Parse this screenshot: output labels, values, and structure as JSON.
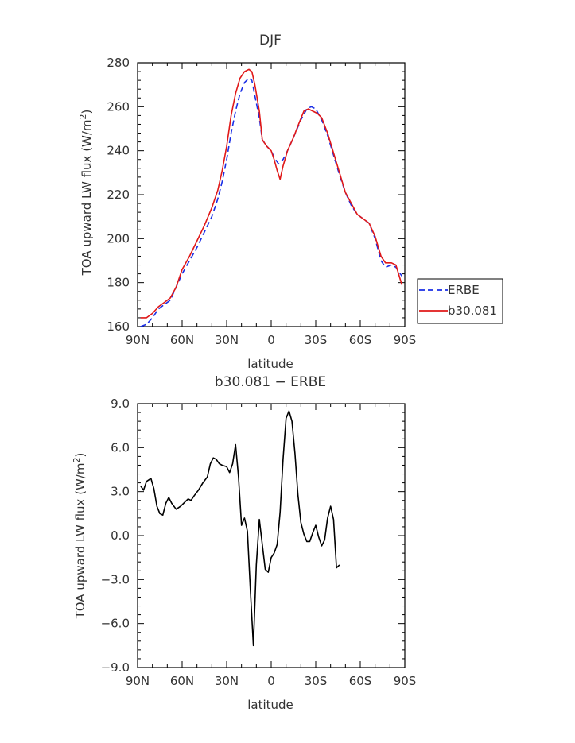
{
  "colors": {
    "ERBE": "#1a2ee6",
    "b30.081": "#e01818",
    "difference": "#000000",
    "axis": "#000000"
  },
  "chart_data": [
    {
      "type": "line",
      "title": "DJF",
      "xlabel": "latitude",
      "ylabel": "TOA upward LW flux (W/m",
      "ylabel_sup": "2",
      "ylabel_end": ")",
      "xlim": [
        -90,
        90
      ],
      "ylim": [
        160,
        280
      ],
      "xticks": [
        -90,
        -60,
        -30,
        0,
        30,
        60,
        90
      ],
      "xtick_labels": [
        "90N",
        "60N",
        "30N",
        "0",
        "30S",
        "60S",
        "90S"
      ],
      "yticks": [
        160,
        180,
        200,
        220,
        240,
        260,
        280
      ],
      "ytick_labels": [
        "160",
        "180",
        "200",
        "220",
        "240",
        "260",
        "280"
      ],
      "legend": {
        "position": "outside-right"
      },
      "series": [
        {
          "name": "ERBE",
          "style": "dashed",
          "points": [
            [
              -88,
              160
            ],
            [
              -84,
              161
            ],
            [
              -80,
              164
            ],
            [
              -76,
              168
            ],
            [
              -72,
              170
            ],
            [
              -68,
              172
            ],
            [
              -64,
              178
            ],
            [
              -60,
              184
            ],
            [
              -55,
              190
            ],
            [
              -50,
              196
            ],
            [
              -45,
              203
            ],
            [
              -40,
              210
            ],
            [
              -36,
              218
            ],
            [
              -33,
              226
            ],
            [
              -30,
              236
            ],
            [
              -27,
              248
            ],
            [
              -24,
              258
            ],
            [
              -21,
              266
            ],
            [
              -18,
              271
            ],
            [
              -15,
              273
            ],
            [
              -13,
              272
            ],
            [
              -11,
              265
            ],
            [
              -8,
              255
            ],
            [
              -6,
              245
            ],
            [
              -3,
              242
            ],
            [
              0,
              240
            ],
            [
              2,
              237
            ],
            [
              5,
              234
            ],
            [
              8,
              236
            ],
            [
              11,
              240
            ],
            [
              15,
              246
            ],
            [
              20,
              254
            ],
            [
              24,
              259
            ],
            [
              27,
              260
            ],
            [
              30,
              259
            ],
            [
              34,
              254
            ],
            [
              38,
              247
            ],
            [
              42,
              238
            ],
            [
              46,
              229
            ],
            [
              50,
              221
            ],
            [
              54,
              215
            ],
            [
              58,
              211
            ],
            [
              62,
              209
            ],
            [
              66,
              207
            ],
            [
              70,
              200
            ],
            [
              74,
              190
            ],
            [
              77,
              187
            ],
            [
              81,
              188
            ],
            [
              84,
              187
            ],
            [
              88,
              183
            ]
          ]
        },
        {
          "name": "b30.081",
          "style": "solid",
          "points": [
            [
              -88,
              164
            ],
            [
              -84,
              164
            ],
            [
              -80,
              166
            ],
            [
              -76,
              169
            ],
            [
              -72,
              171
            ],
            [
              -68,
              173
            ],
            [
              -64,
              178
            ],
            [
              -60,
              186
            ],
            [
              -55,
              192
            ],
            [
              -50,
              199
            ],
            [
              -45,
              206
            ],
            [
              -40,
              214
            ],
            [
              -36,
              222
            ],
            [
              -33,
              231
            ],
            [
              -30,
              242
            ],
            [
              -27,
              256
            ],
            [
              -24,
              266
            ],
            [
              -21,
              273
            ],
            [
              -18,
              276
            ],
            [
              -15,
              277
            ],
            [
              -13,
              276
            ],
            [
              -11,
              270
            ],
            [
              -8,
              258
            ],
            [
              -6,
              245
            ],
            [
              -3,
              242
            ],
            [
              0,
              240
            ],
            [
              2,
              236
            ],
            [
              4,
              231
            ],
            [
              6,
              227
            ],
            [
              8,
              233
            ],
            [
              11,
              240
            ],
            [
              15,
              246
            ],
            [
              19,
              253
            ],
            [
              22,
              258
            ],
            [
              25,
              259
            ],
            [
              28,
              258
            ],
            [
              31,
              257
            ],
            [
              34,
              255
            ],
            [
              38,
              248
            ],
            [
              42,
              239
            ],
            [
              46,
              230
            ],
            [
              50,
              221
            ],
            [
              54,
              216
            ],
            [
              58,
              211
            ],
            [
              62,
              209
            ],
            [
              66,
              207
            ],
            [
              70,
              201
            ],
            [
              74,
              192
            ],
            [
              77,
              189
            ],
            [
              81,
              189
            ],
            [
              84,
              188
            ],
            [
              88,
              179
            ]
          ]
        }
      ]
    },
    {
      "type": "line",
      "title": "b30.081 − ERBE",
      "xlabel": "latitude",
      "ylabel": "TOA upward LW flux (W/m",
      "ylabel_sup": "2",
      "ylabel_end": ")",
      "xlim": [
        -90,
        90
      ],
      "ylim": [
        -9,
        9
      ],
      "xticks": [
        -90,
        -60,
        -30,
        0,
        30,
        60,
        90
      ],
      "xtick_labels": [
        "90N",
        "60N",
        "30N",
        "0",
        "30S",
        "60S",
        "90S"
      ],
      "yticks": [
        -9,
        -6,
        -3,
        0,
        3,
        6,
        9
      ],
      "ytick_labels": [
        "−9.0",
        "−6.0",
        "−3.0",
        "0.0",
        "3.0",
        "6.0",
        "9.0"
      ],
      "series": [
        {
          "points": [
            [
              -88,
              3.4
            ],
            [
              -86,
              3.1
            ],
            [
              -84,
              3.7
            ],
            [
              -81,
              3.9
            ],
            [
              -79,
              3.2
            ],
            [
              -77,
              2.0
            ],
            [
              -75,
              1.5
            ],
            [
              -73,
              1.4
            ],
            [
              -71,
              2.2
            ],
            [
              -69,
              2.6
            ],
            [
              -67,
              2.2
            ],
            [
              -64,
              1.8
            ],
            [
              -61,
              2.0
            ],
            [
              -58,
              2.3
            ],
            [
              -56,
              2.5
            ],
            [
              -54,
              2.4
            ],
            [
              -52,
              2.7
            ],
            [
              -49,
              3.1
            ],
            [
              -46,
              3.6
            ],
            [
              -43,
              4.0
            ],
            [
              -41,
              4.9
            ],
            [
              -39,
              5.3
            ],
            [
              -37,
              5.2
            ],
            [
              -35,
              4.9
            ],
            [
              -33,
              4.8
            ],
            [
              -30,
              4.7
            ],
            [
              -28,
              4.3
            ],
            [
              -26,
              4.9
            ],
            [
              -24,
              6.2
            ],
            [
              -22,
              4.0
            ],
            [
              -20,
              0.7
            ],
            [
              -18,
              1.2
            ],
            [
              -16,
              0.3
            ],
            [
              -14,
              -3.8
            ],
            [
              -12,
              -7.5
            ],
            [
              -10,
              -2.0
            ],
            [
              -8,
              1.1
            ],
            [
              -6,
              -0.6
            ],
            [
              -4,
              -2.3
            ],
            [
              -2,
              -2.5
            ],
            [
              0,
              -1.5
            ],
            [
              2,
              -1.2
            ],
            [
              4,
              -0.6
            ],
            [
              6,
              1.6
            ],
            [
              8,
              5.2
            ],
            [
              10,
              8.0
            ],
            [
              12,
              8.5
            ],
            [
              14,
              7.8
            ],
            [
              16,
              5.6
            ],
            [
              18,
              2.8
            ],
            [
              20,
              0.9
            ],
            [
              22,
              0.1
            ],
            [
              24,
              -0.4
            ],
            [
              26,
              -0.4
            ],
            [
              28,
              0.2
            ],
            [
              30,
              0.7
            ],
            [
              32,
              -0.1
            ],
            [
              34,
              -0.7
            ],
            [
              36,
              -0.3
            ],
            [
              38,
              1.2
            ],
            [
              40,
              2.0
            ],
            [
              42,
              1.1
            ],
            [
              44,
              -2.2
            ],
            [
              46,
              -2.0
            ]
          ]
        }
      ]
    }
  ]
}
